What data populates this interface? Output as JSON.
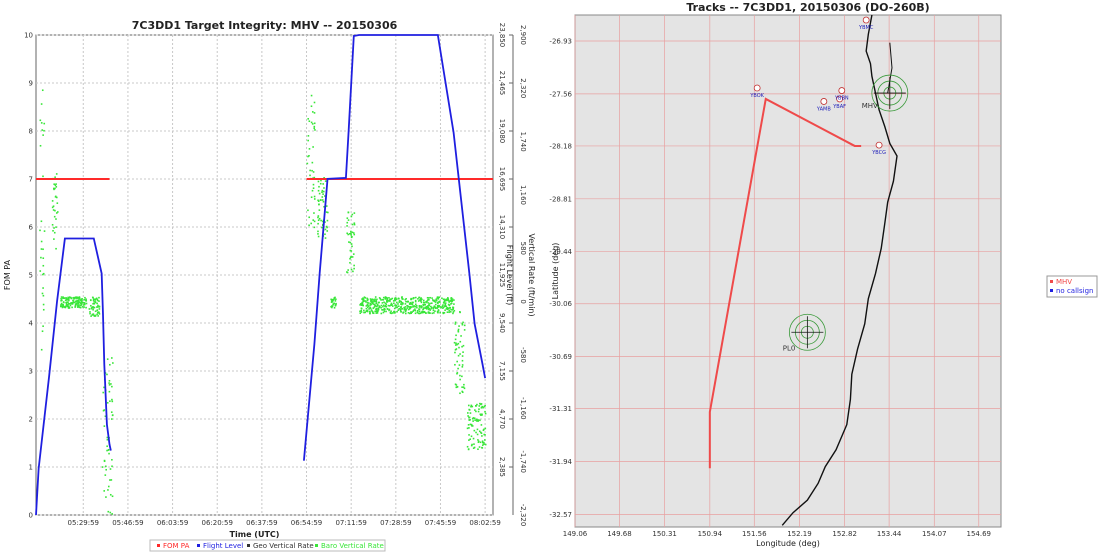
{
  "colors": {
    "fom": "#ff2a2a",
    "flight_level": "#1f1fe0",
    "geo_rate": "#333333",
    "baro_rate": "#39e639",
    "track": "#ef4a4a",
    "coast": "#111111",
    "map_bg": "#e4e4e4",
    "map_grid": "#e8a0a0",
    "station": "#3a9a3a",
    "station_label": "#1a1ab8"
  },
  "chart_data": [
    {
      "type": "line",
      "title": "7C3DD1 Target Integrity: MHV -- 20150306",
      "xlabel": "Time (UTC)",
      "ylabel": "FOM PA",
      "ylabel_right_1": "Flight Level (ft)",
      "ylabel_right_2": "Vertical Rate (ft/min)",
      "x_ticks": [
        "05:29:59",
        "05:46:59",
        "06:03:59",
        "06:20:59",
        "06:37:59",
        "06:54:59",
        "07:11:59",
        "07:28:59",
        "07:45:59",
        "08:02:59"
      ],
      "x_tick_minutes": [
        329,
        346,
        363,
        380,
        397,
        414,
        431,
        448,
        465,
        482
      ],
      "xlim_minutes": [
        311,
        485
      ],
      "y_ticks": [
        "0",
        "1",
        "2",
        "3",
        "4",
        "5",
        "6",
        "7",
        "8",
        "9",
        "10"
      ],
      "ylim": [
        0,
        10
      ],
      "y2_ticks": [
        "2,385",
        "4,770",
        "7,155",
        "9,540",
        "11,925",
        "14,310",
        "16,695",
        "19,080",
        "21,465",
        "23,850"
      ],
      "ylim2": [
        0,
        23850
      ],
      "y3_ticks": [
        "-2,320",
        "-1,740",
        "-1,160",
        "-580",
        "0",
        "580",
        "1,160",
        "1,740",
        "2,320",
        "2,900"
      ],
      "ylim3": [
        -2320,
        2900
      ],
      "grid": true,
      "legend_position": "bottom",
      "legend": [
        "FOM PA",
        "Flight Level",
        "Geo Vertical Rate",
        "Baro Vertical Rate"
      ],
      "series": [
        {
          "name": "FOM PA",
          "segments": [
            {
              "x": [
                311,
                339
              ],
              "y": [
                7,
                7
              ]
            },
            {
              "x": [
                414,
                485
              ],
              "y": [
                7,
                7
              ]
            }
          ]
        },
        {
          "name": "Flight Level",
          "axis": "y2",
          "segments": [
            {
              "x": [
                311,
                312,
                316,
                319,
                322,
                333,
                336,
                336.5,
                337,
                338,
                339,
                339.5
              ],
              "y": [
                0,
                2300,
                6900,
                10600,
                13740,
                13740,
                12000,
                10000,
                7500,
                4500,
                3500,
                3200
              ]
            },
            {
              "x": [
                413,
                417,
                419,
                422,
                429,
                430,
                432,
                434,
                464,
                470,
                476,
                478,
                481,
                482
              ],
              "y": [
                2700,
                8500,
                12000,
                16700,
                16750,
                19000,
                23800,
                23850,
                23850,
                19000,
                12000,
                9500,
                7500,
                6800
              ]
            }
          ]
        },
        {
          "name": "Baro Vertical Rate",
          "axis": "y3",
          "clusters": [
            {
              "x": [
                312,
                314
              ],
              "y": [
                -580,
                2320
              ]
            },
            {
              "x": [
                317,
                319
              ],
              "y": [
                580,
                1400
              ]
            },
            {
              "x": [
                320,
                330
              ],
              "y": [
                -60,
                60
              ]
            },
            {
              "x": [
                331,
                335
              ],
              "y": [
                -150,
                60
              ]
            },
            {
              "x": [
                336,
                340
              ],
              "y": [
                -2320,
                -600
              ]
            },
            {
              "x": [
                414,
                417
              ],
              "y": [
                800,
                2300
              ]
            },
            {
              "x": [
                418,
                422
              ],
              "y": [
                700,
                1400
              ]
            },
            {
              "x": [
                423,
                425
              ],
              "y": [
                -60,
                60
              ]
            },
            {
              "x": [
                429,
                432
              ],
              "y": [
                300,
                1000
              ]
            },
            {
              "x": [
                434,
                470
              ],
              "y": [
                -120,
                60
              ]
            },
            {
              "x": [
                470,
                474
              ],
              "y": [
                -1000,
                -100
              ]
            },
            {
              "x": [
                475,
                482
              ],
              "y": [
                -1600,
                -1100
              ]
            }
          ]
        }
      ]
    },
    {
      "type": "scatter",
      "title": "Tracks -- 7C3DD1, 20150306 (DO-260B)",
      "xlabel": "Longitude (deg)",
      "ylabel": "Latitude (deg)",
      "x_ticks": [
        "149.06",
        "149.68",
        "150.31",
        "150.94",
        "151.56",
        "152.19",
        "152.82",
        "153.44",
        "154.07",
        "154.69"
      ],
      "x_tick_values": [
        149.06,
        149.68,
        150.31,
        150.94,
        151.56,
        152.19,
        152.82,
        153.44,
        154.07,
        154.69
      ],
      "xlim": [
        149.06,
        155.0
      ],
      "y_ticks": [
        "-26.93",
        "-27.56",
        "-28.18",
        "-28.81",
        "-29.44",
        "-30.06",
        "-30.69",
        "-31.31",
        "-31.94",
        "-32.57"
      ],
      "y_tick_values": [
        -26.93,
        -27.56,
        -28.18,
        -28.81,
        -29.44,
        -30.06,
        -30.69,
        -31.31,
        -31.94,
        -32.57
      ],
      "ylim": [
        -32.72,
        -26.62
      ],
      "grid": true,
      "legend": [
        "MHV",
        "no callsign"
      ],
      "legend_position": "right",
      "series": [
        {
          "name": "MHV",
          "x": [
            150.94,
            150.94,
            151.72,
            152.96,
            153.05
          ],
          "y": [
            -32.02,
            -31.35,
            -27.62,
            -28.18,
            -28.18
          ]
        }
      ],
      "stations": [
        {
          "label": "YBMC",
          "lon": 153.12,
          "lat": -26.68
        },
        {
          "label": "YBOK",
          "lon": 151.6,
          "lat": -27.49
        },
        {
          "label": "YAMB",
          "lon": 152.53,
          "lat": -27.65
        },
        {
          "label": "YBAF",
          "lon": 152.75,
          "lat": -27.62
        },
        {
          "label": "YBBN",
          "lon": 152.78,
          "lat": -27.52
        },
        {
          "label": "YBCG",
          "lon": 153.3,
          "lat": -28.17
        },
        {
          "label": "MHV",
          "lon": 153.45,
          "lat": -27.55
        },
        {
          "label": "PL0",
          "lon": 152.3,
          "lat": -30.4
        }
      ]
    }
  ]
}
